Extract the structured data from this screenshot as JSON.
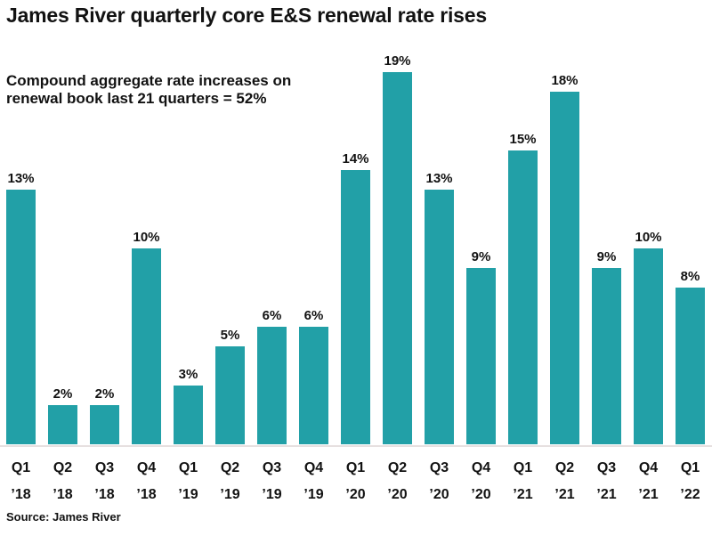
{
  "meta": {
    "title": "James River quarterly core E&S renewal rate rises",
    "subtitle_line1": "Compound aggregate rate increases on",
    "subtitle_line2": "renewal book last 21 quarters = 52%",
    "source": "Source: James River"
  },
  "colors": {
    "bar": "#22a0a7",
    "axis_line": "#e6e0e0",
    "text": "#121212",
    "background": "#ffffff"
  },
  "chart_data": {
    "type": "bar",
    "title": "James River quarterly core E&S renewal rate rises",
    "subtitle": "Compound aggregate rate increases on renewal book last 21 quarters = 52%",
    "categories": [
      "Q1 ’18",
      "Q2 ’18",
      "Q3 ’18",
      "Q4 ’18",
      "Q1 ’19",
      "Q2 ’19",
      "Q3 ’19",
      "Q4 ’19",
      "Q1 ’20",
      "Q2 ’20",
      "Q3 ’20",
      "Q4 ’20",
      "Q1 ’21",
      "Q2 ’21",
      "Q3 ’21",
      "Q4 ’21",
      "Q1 ’22"
    ],
    "values": [
      13,
      2,
      2,
      10,
      3,
      5,
      6,
      6,
      14,
      19,
      13,
      9,
      15,
      18,
      9,
      10,
      8
    ],
    "value_labels": [
      "13%",
      "2%",
      "2%",
      "10%",
      "3%",
      "5%",
      "6%",
      "6%",
      "14%",
      "19%",
      "13%",
      "9%",
      "15%",
      "18%",
      "9%",
      "10%",
      "8%"
    ],
    "unit": "%",
    "xlabel": "",
    "ylabel": "",
    "ylim": [
      0,
      20
    ],
    "grid": false,
    "legend": null,
    "source": "Source: James River"
  }
}
